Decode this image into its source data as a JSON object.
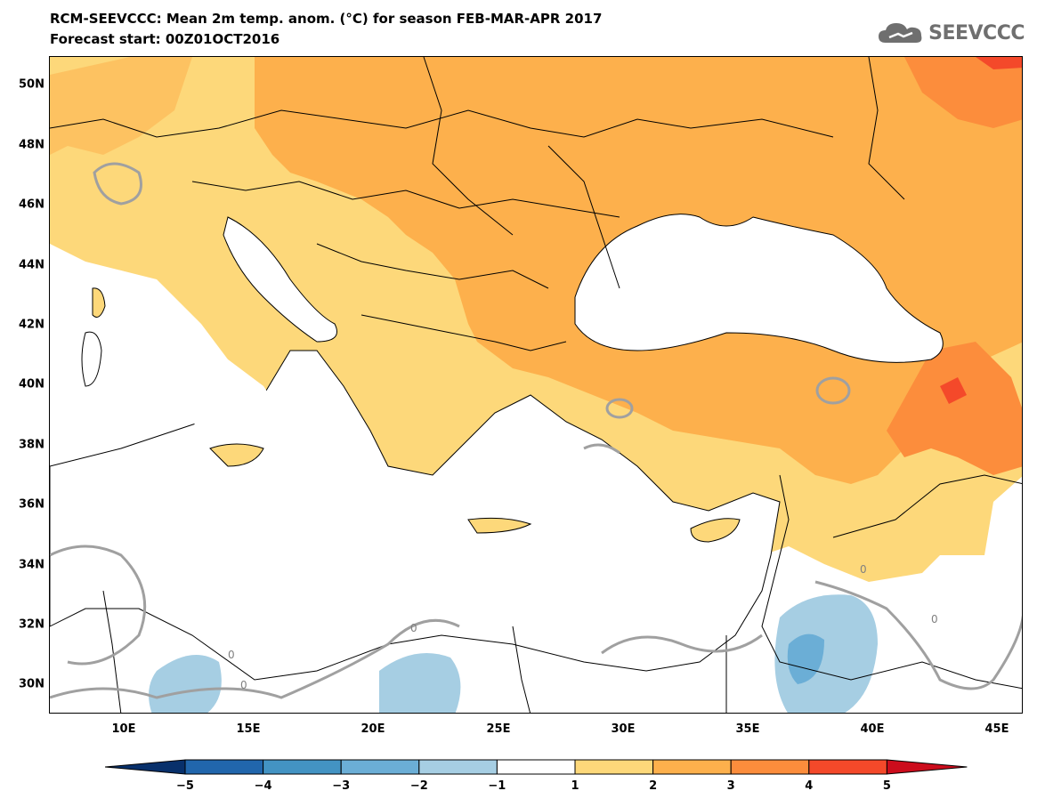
{
  "header": {
    "title_line1": "RCM-SEEVCCC: Mean 2m temp. anom. (°C) for season FEB-MAR-APR 2017",
    "title_line2": "Forecast start: 00Z01OCT2016"
  },
  "logo": {
    "text": "SEEVCCC",
    "icon": "cloud-icon"
  },
  "map": {
    "lat_labels": [
      "50N",
      "48N",
      "46N",
      "44N",
      "42N",
      "40N",
      "38N",
      "36N",
      "34N",
      "32N",
      "30N"
    ],
    "lat_values": [
      50,
      48,
      46,
      44,
      42,
      40,
      38,
      36,
      34,
      32,
      30
    ],
    "lon_labels": [
      "10E",
      "15E",
      "20E",
      "25E",
      "30E",
      "35E",
      "40E",
      "45E"
    ],
    "lon_values": [
      10,
      15,
      20,
      25,
      30,
      35,
      40,
      45
    ],
    "lon_range": [
      7,
      46
    ],
    "lat_range": [
      29,
      51
    ],
    "contour_label": "0"
  },
  "colorbar": {
    "labels": [
      "−5",
      "−4",
      "−3",
      "−2",
      "−1",
      "1",
      "2",
      "3",
      "4",
      "5"
    ],
    "colors": [
      "#08306b",
      "#2166ac",
      "#4393c3",
      "#6baed6",
      "#a6cee3",
      "#ffffff",
      "#fdd87a",
      "#fdb04c",
      "#fc8d3c",
      "#f4492a",
      "#cc0c1c"
    ]
  }
}
